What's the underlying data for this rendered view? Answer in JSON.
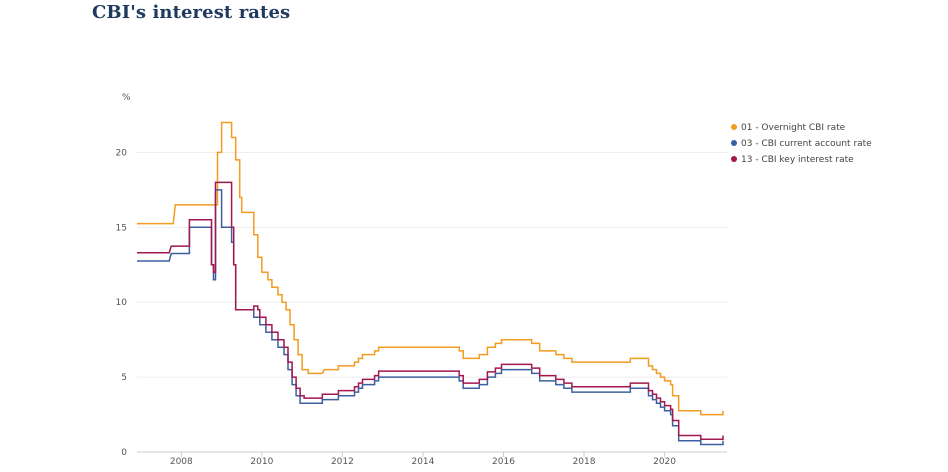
{
  "title": "CBI's interest rates",
  "chart_data": {
    "type": "line",
    "step": true,
    "ylabel": "%",
    "xlabel": "",
    "ylim": [
      0,
      22.5
    ],
    "yticks": [
      0,
      5,
      10,
      15,
      20
    ],
    "xlim": [
      2006.9,
      2021.55
    ],
    "xticks": [
      2008,
      2010,
      2012,
      2014,
      2016,
      2018,
      2020
    ],
    "grid": "horizontal",
    "legend_position": "right",
    "series": [
      {
        "name": "01 - Overnight CBI rate",
        "color": "#f39c1f",
        "points": [
          [
            2006.9,
            15.25
          ],
          [
            2007.8,
            15.25
          ],
          [
            2007.85,
            16.5
          ],
          [
            2008.6,
            16.5
          ],
          [
            2008.9,
            16.5
          ],
          [
            2008.9,
            20
          ],
          [
            2009.0,
            20
          ],
          [
            2009.0,
            22
          ],
          [
            2009.25,
            22
          ],
          [
            2009.25,
            21
          ],
          [
            2009.35,
            21
          ],
          [
            2009.35,
            19.5
          ],
          [
            2009.45,
            19.5
          ],
          [
            2009.45,
            17
          ],
          [
            2009.5,
            17
          ],
          [
            2009.5,
            16
          ],
          [
            2009.8,
            16
          ],
          [
            2009.8,
            14.5
          ],
          [
            2009.9,
            14.5
          ],
          [
            2009.9,
            13
          ],
          [
            2010.0,
            13
          ],
          [
            2010.0,
            12
          ],
          [
            2010.15,
            12
          ],
          [
            2010.15,
            11.5
          ],
          [
            2010.25,
            11.5
          ],
          [
            2010.25,
            11
          ],
          [
            2010.4,
            11
          ],
          [
            2010.4,
            10.5
          ],
          [
            2010.5,
            10.5
          ],
          [
            2010.5,
            10
          ],
          [
            2010.6,
            10
          ],
          [
            2010.6,
            9.5
          ],
          [
            2010.7,
            9.5
          ],
          [
            2010.7,
            8.5
          ],
          [
            2010.8,
            8.5
          ],
          [
            2010.8,
            7.5
          ],
          [
            2010.9,
            7.5
          ],
          [
            2010.9,
            6.5
          ],
          [
            2011.0,
            6.5
          ],
          [
            2011.0,
            5.5
          ],
          [
            2011.15,
            5.5
          ],
          [
            2011.15,
            5.25
          ],
          [
            2011.5,
            5.25
          ],
          [
            2011.55,
            5.5
          ],
          [
            2011.9,
            5.5
          ],
          [
            2011.9,
            5.75
          ],
          [
            2012.3,
            5.75
          ],
          [
            2012.3,
            6
          ],
          [
            2012.4,
            6
          ],
          [
            2012.4,
            6.25
          ],
          [
            2012.5,
            6.25
          ],
          [
            2012.5,
            6.5
          ],
          [
            2012.8,
            6.5
          ],
          [
            2012.8,
            6.75
          ],
          [
            2012.9,
            6.75
          ],
          [
            2012.9,
            7
          ],
          [
            2014.9,
            7
          ],
          [
            2014.9,
            6.75
          ],
          [
            2015.0,
            6.75
          ],
          [
            2015.0,
            6.25
          ],
          [
            2015.4,
            6.25
          ],
          [
            2015.4,
            6.5
          ],
          [
            2015.6,
            6.5
          ],
          [
            2015.6,
            7
          ],
          [
            2015.8,
            7
          ],
          [
            2015.8,
            7.25
          ],
          [
            2015.95,
            7.25
          ],
          [
            2015.95,
            7.5
          ],
          [
            2016.7,
            7.5
          ],
          [
            2016.7,
            7.25
          ],
          [
            2016.9,
            7.25
          ],
          [
            2016.9,
            6.75
          ],
          [
            2017.3,
            6.75
          ],
          [
            2017.3,
            6.5
          ],
          [
            2017.5,
            6.5
          ],
          [
            2017.5,
            6.25
          ],
          [
            2017.7,
            6.25
          ],
          [
            2017.7,
            6
          ],
          [
            2019.15,
            6
          ],
          [
            2019.15,
            6.25
          ],
          [
            2019.6,
            6.25
          ],
          [
            2019.6,
            5.75
          ],
          [
            2019.7,
            5.75
          ],
          [
            2019.7,
            5.5
          ],
          [
            2019.8,
            5.5
          ],
          [
            2019.8,
            5.25
          ],
          [
            2019.9,
            5.25
          ],
          [
            2019.9,
            5
          ],
          [
            2020.0,
            5
          ],
          [
            2020.0,
            4.75
          ],
          [
            2020.15,
            4.75
          ],
          [
            2020.15,
            4.5
          ],
          [
            2020.2,
            4.5
          ],
          [
            2020.2,
            3.75
          ],
          [
            2020.35,
            3.75
          ],
          [
            2020.35,
            2.75
          ],
          [
            2020.9,
            2.75
          ],
          [
            2020.9,
            2.5
          ],
          [
            2021.45,
            2.5
          ],
          [
            2021.45,
            2.75
          ]
        ]
      },
      {
        "name": "03 - CBI current account rate",
        "color": "#3c5fa0",
        "points": [
          [
            2006.9,
            12.75
          ],
          [
            2007.7,
            12.75
          ],
          [
            2007.75,
            13.25
          ],
          [
            2008.2,
            13.25
          ],
          [
            2008.2,
            15
          ],
          [
            2008.6,
            15
          ],
          [
            2008.75,
            15
          ],
          [
            2008.75,
            12.5
          ],
          [
            2008.8,
            12.5
          ],
          [
            2008.8,
            11.5
          ],
          [
            2008.85,
            11.5
          ],
          [
            2008.85,
            17.5
          ],
          [
            2009.0,
            17.5
          ],
          [
            2009.0,
            15
          ],
          [
            2009.25,
            15
          ],
          [
            2009.25,
            14
          ],
          [
            2009.3,
            14
          ],
          [
            2009.3,
            12.5
          ],
          [
            2009.35,
            12.5
          ],
          [
            2009.35,
            9.5
          ],
          [
            2009.8,
            9.5
          ],
          [
            2009.8,
            9
          ],
          [
            2009.95,
            9
          ],
          [
            2009.95,
            8.5
          ],
          [
            2010.1,
            8.5
          ],
          [
            2010.1,
            8
          ],
          [
            2010.25,
            8
          ],
          [
            2010.25,
            7.5
          ],
          [
            2010.4,
            7.5
          ],
          [
            2010.4,
            7
          ],
          [
            2010.55,
            7
          ],
          [
            2010.55,
            6.5
          ],
          [
            2010.65,
            6.5
          ],
          [
            2010.65,
            5.5
          ],
          [
            2010.75,
            5.5
          ],
          [
            2010.75,
            4.5
          ],
          [
            2010.85,
            4.5
          ],
          [
            2010.85,
            3.75
          ],
          [
            2010.95,
            3.75
          ],
          [
            2010.95,
            3.25
          ],
          [
            2011.5,
            3.25
          ],
          [
            2011.5,
            3.5
          ],
          [
            2011.9,
            3.5
          ],
          [
            2011.9,
            3.75
          ],
          [
            2012.3,
            3.75
          ],
          [
            2012.3,
            4
          ],
          [
            2012.4,
            4
          ],
          [
            2012.4,
            4.25
          ],
          [
            2012.5,
            4.25
          ],
          [
            2012.5,
            4.5
          ],
          [
            2012.8,
            4.5
          ],
          [
            2012.8,
            4.75
          ],
          [
            2012.9,
            4.75
          ],
          [
            2012.9,
            5
          ],
          [
            2014.9,
            5
          ],
          [
            2014.9,
            4.75
          ],
          [
            2015.0,
            4.75
          ],
          [
            2015.0,
            4.25
          ],
          [
            2015.4,
            4.25
          ],
          [
            2015.4,
            4.5
          ],
          [
            2015.6,
            4.5
          ],
          [
            2015.6,
            5
          ],
          [
            2015.8,
            5
          ],
          [
            2015.8,
            5.25
          ],
          [
            2015.95,
            5.25
          ],
          [
            2015.95,
            5.5
          ],
          [
            2016.7,
            5.5
          ],
          [
            2016.7,
            5.25
          ],
          [
            2016.9,
            5.25
          ],
          [
            2016.9,
            4.75
          ],
          [
            2017.3,
            4.75
          ],
          [
            2017.3,
            4.5
          ],
          [
            2017.5,
            4.5
          ],
          [
            2017.5,
            4.25
          ],
          [
            2017.7,
            4.25
          ],
          [
            2017.7,
            4
          ],
          [
            2019.15,
            4
          ],
          [
            2019.15,
            4.25
          ],
          [
            2019.6,
            4.25
          ],
          [
            2019.6,
            3.75
          ],
          [
            2019.7,
            3.75
          ],
          [
            2019.7,
            3.5
          ],
          [
            2019.8,
            3.5
          ],
          [
            2019.8,
            3.25
          ],
          [
            2019.9,
            3.25
          ],
          [
            2019.9,
            3
          ],
          [
            2020.0,
            3
          ],
          [
            2020.0,
            2.75
          ],
          [
            2020.15,
            2.75
          ],
          [
            2020.15,
            2.5
          ],
          [
            2020.2,
            2.5
          ],
          [
            2020.2,
            1.75
          ],
          [
            2020.35,
            1.75
          ],
          [
            2020.35,
            0.75
          ],
          [
            2020.9,
            0.75
          ],
          [
            2020.9,
            0.5
          ],
          [
            2021.45,
            0.5
          ],
          [
            2021.45,
            0.75
          ]
        ]
      },
      {
        "name": "13 - CBI key interest rate",
        "color": "#a3164f",
        "points": [
          [
            2006.9,
            13.3
          ],
          [
            2007.7,
            13.3
          ],
          [
            2007.75,
            13.75
          ],
          [
            2008.2,
            13.75
          ],
          [
            2008.2,
            15.5
          ],
          [
            2008.6,
            15.5
          ],
          [
            2008.75,
            15.5
          ],
          [
            2008.75,
            12.5
          ],
          [
            2008.8,
            12.5
          ],
          [
            2008.8,
            12
          ],
          [
            2008.85,
            12
          ],
          [
            2008.85,
            18
          ],
          [
            2009.25,
            18
          ],
          [
            2009.25,
            15
          ],
          [
            2009.3,
            15
          ],
          [
            2009.3,
            12.5
          ],
          [
            2009.35,
            12.5
          ],
          [
            2009.35,
            9.5
          ],
          [
            2009.8,
            9.5
          ],
          [
            2009.8,
            9.75
          ],
          [
            2009.9,
            9.75
          ],
          [
            2009.9,
            9.5
          ],
          [
            2009.95,
            9.5
          ],
          [
            2009.95,
            9
          ],
          [
            2010.1,
            9
          ],
          [
            2010.1,
            8.5
          ],
          [
            2010.25,
            8.5
          ],
          [
            2010.25,
            8
          ],
          [
            2010.4,
            8
          ],
          [
            2010.4,
            7.5
          ],
          [
            2010.55,
            7.5
          ],
          [
            2010.55,
            7
          ],
          [
            2010.65,
            7
          ],
          [
            2010.65,
            6
          ],
          [
            2010.75,
            6
          ],
          [
            2010.75,
            5
          ],
          [
            2010.85,
            5
          ],
          [
            2010.85,
            4.25
          ],
          [
            2010.95,
            4.25
          ],
          [
            2010.95,
            3.75
          ],
          [
            2011.05,
            3.75
          ],
          [
            2011.05,
            3.6
          ],
          [
            2011.5,
            3.6
          ],
          [
            2011.5,
            3.85
          ],
          [
            2011.9,
            3.85
          ],
          [
            2011.9,
            4.1
          ],
          [
            2012.3,
            4.1
          ],
          [
            2012.3,
            4.35
          ],
          [
            2012.4,
            4.35
          ],
          [
            2012.4,
            4.6
          ],
          [
            2012.5,
            4.6
          ],
          [
            2012.5,
            4.85
          ],
          [
            2012.8,
            4.85
          ],
          [
            2012.8,
            5.1
          ],
          [
            2012.9,
            5.1
          ],
          [
            2012.9,
            5.4
          ],
          [
            2014.9,
            5.4
          ],
          [
            2014.9,
            5.1
          ],
          [
            2015.0,
            5.1
          ],
          [
            2015.0,
            4.6
          ],
          [
            2015.4,
            4.6
          ],
          [
            2015.4,
            4.85
          ],
          [
            2015.6,
            4.85
          ],
          [
            2015.6,
            5.35
          ],
          [
            2015.8,
            5.35
          ],
          [
            2015.8,
            5.6
          ],
          [
            2015.95,
            5.6
          ],
          [
            2015.95,
            5.85
          ],
          [
            2016.7,
            5.85
          ],
          [
            2016.7,
            5.6
          ],
          [
            2016.9,
            5.6
          ],
          [
            2016.9,
            5.1
          ],
          [
            2017.3,
            5.1
          ],
          [
            2017.3,
            4.85
          ],
          [
            2017.5,
            4.85
          ],
          [
            2017.5,
            4.6
          ],
          [
            2017.7,
            4.6
          ],
          [
            2017.7,
            4.35
          ],
          [
            2019.15,
            4.35
          ],
          [
            2019.15,
            4.6
          ],
          [
            2019.6,
            4.6
          ],
          [
            2019.6,
            4.1
          ],
          [
            2019.7,
            4.1
          ],
          [
            2019.7,
            3.85
          ],
          [
            2019.8,
            3.85
          ],
          [
            2019.8,
            3.6
          ],
          [
            2019.9,
            3.6
          ],
          [
            2019.9,
            3.35
          ],
          [
            2020.0,
            3.35
          ],
          [
            2020.0,
            3.1
          ],
          [
            2020.15,
            3.1
          ],
          [
            2020.15,
            2.85
          ],
          [
            2020.2,
            2.85
          ],
          [
            2020.2,
            2.1
          ],
          [
            2020.35,
            2.1
          ],
          [
            2020.35,
            1.1
          ],
          [
            2020.9,
            1.1
          ],
          [
            2020.9,
            0.85
          ],
          [
            2021.45,
            0.85
          ],
          [
            2021.45,
            1.1
          ]
        ]
      }
    ]
  }
}
